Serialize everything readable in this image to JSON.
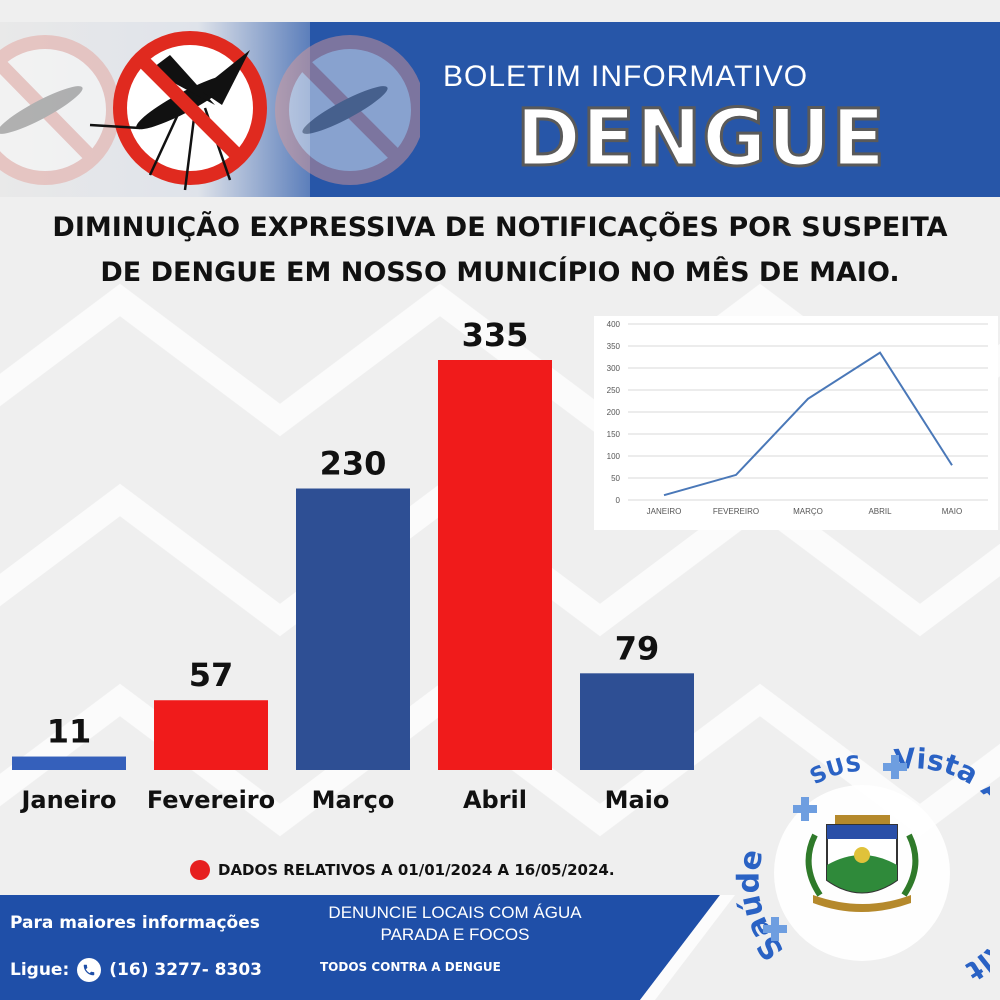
{
  "header": {
    "boletim": "BOLETIM INFORMATIVO",
    "title": "DENGUE"
  },
  "headline": {
    "line1": "DIMINUIÇÃO EXPRESSIVA DE NOTIFICAÇÕES POR SUSPEITA",
    "line2": "DE DENGUE  EM NOSSO MUNICÍPIO NO MÊS DE MAIO."
  },
  "chart_data": [
    {
      "type": "bar",
      "categories": [
        "Janeiro",
        "Fevereiro",
        "Março",
        "Abril",
        "Maio"
      ],
      "values": [
        11,
        57,
        230,
        335,
        79
      ],
      "title": "",
      "xlabel": "",
      "ylabel": "",
      "colors": [
        "#3560bb",
        "#f01b1b",
        "#2e4f94",
        "#f01b1b",
        "#2e4f94"
      ],
      "legend": "none",
      "grid": false
    },
    {
      "type": "line",
      "categories": [
        "JANEIRO",
        "FEVEREIRO",
        "MARÇO",
        "ABRIL",
        "MAIO"
      ],
      "values": [
        11,
        57,
        230,
        335,
        79
      ],
      "ylim": [
        0,
        400
      ],
      "yticks": [
        0,
        50,
        100,
        150,
        200,
        250,
        300,
        350,
        400
      ],
      "title": "",
      "xlabel": "",
      "ylabel": "",
      "grid": true,
      "legend": "none",
      "line_color": "#4a78b8"
    }
  ],
  "note": "DADOS RELATIVOS A 01/01/2024 A 16/05/2024.",
  "footer": {
    "info": "Para maiores informações",
    "phone_label": "Ligue:",
    "phone": "(16) 3277- 8303",
    "denuncie_line1": "DENUNCIE LOCAIS COM ÁGUA",
    "denuncie_line2": "PARADA E FOCOS",
    "todos": "TODOS CONTRA A DENGUE"
  },
  "seal": {
    "left_text": "Saúde",
    "top_text": "SUS",
    "right_text": "Vista Alegre do Alto"
  },
  "colors": {
    "brand_blue": "#2756a8",
    "alert_red": "#e61f1f",
    "footer_blue": "#1f4fa8"
  }
}
